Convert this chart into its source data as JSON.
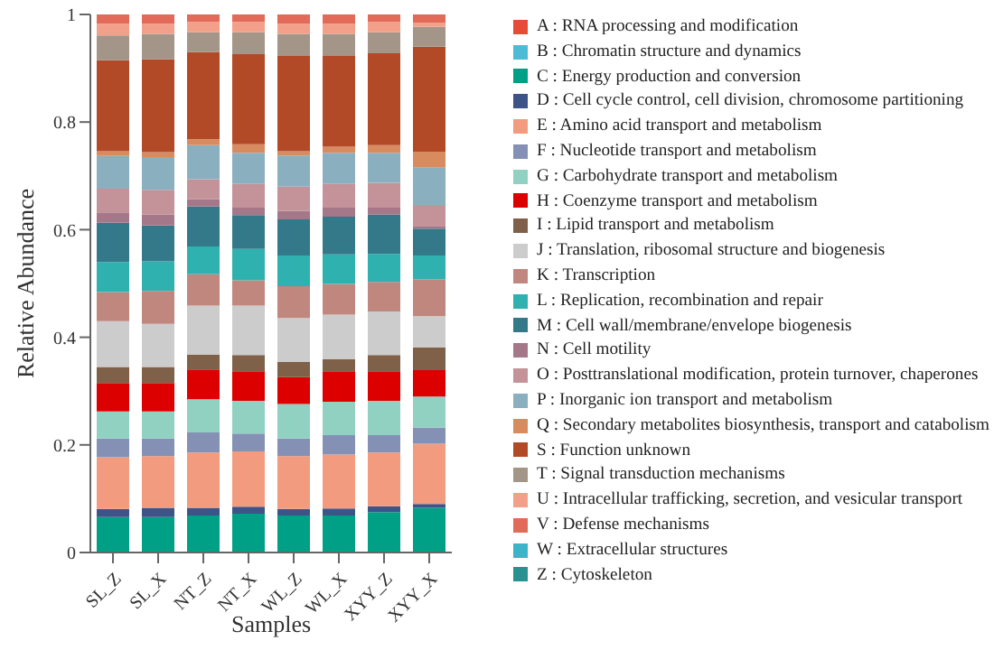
{
  "chart_data": {
    "type": "bar",
    "stacked": true,
    "xlabel": "Samples",
    "ylabel": "Relative Abundance",
    "categories": [
      "SL_Z",
      "SL_X",
      "NT_Z",
      "NT_X",
      "WL_Z",
      "WL_X",
      "XYY_Z",
      "XYY_X"
    ],
    "ylim": [
      0,
      1
    ],
    "yticks": [
      0,
      0.2,
      0.4,
      0.6,
      0.8,
      1
    ],
    "grid": false,
    "legend": "right",
    "series": [
      {
        "name": "A : RNA processing and modification",
        "color": "#e64b35",
        "values": [
          0,
          0,
          0,
          0,
          0,
          0,
          0,
          0
        ]
      },
      {
        "name": "B : Chromatin structure and dynamics",
        "color": "#4dbbd5",
        "values": [
          0,
          0,
          0,
          0,
          0,
          0,
          0,
          0
        ]
      },
      {
        "name": "C : Energy production and conversion",
        "color": "#00a087",
        "values": [
          0.066,
          0.066,
          0.069,
          0.072,
          0.069,
          0.069,
          0.075,
          0.083
        ]
      },
      {
        "name": "D : Cell cycle control, cell division, chromosome partitioning",
        "color": "#3c5488",
        "values": [
          0.015,
          0.017,
          0.014,
          0.013,
          0.012,
          0.013,
          0.011,
          0.007
        ]
      },
      {
        "name": "E : Amino acid transport and metabolism",
        "color": "#f39b7f",
        "values": [
          0.096,
          0.096,
          0.103,
          0.103,
          0.098,
          0.1,
          0.1,
          0.112
        ]
      },
      {
        "name": "F : Nucleotide transport and metabolism",
        "color": "#8491b4",
        "values": [
          0.035,
          0.033,
          0.037,
          0.033,
          0.033,
          0.036,
          0.032,
          0.03
        ]
      },
      {
        "name": "G : Carbohydrate transport and metabolism",
        "color": "#91d1c2",
        "values": [
          0.05,
          0.05,
          0.062,
          0.061,
          0.064,
          0.062,
          0.064,
          0.058
        ]
      },
      {
        "name": "H : Coenzyme transport and metabolism",
        "color": "#dc0000",
        "values": [
          0.053,
          0.053,
          0.055,
          0.055,
          0.05,
          0.057,
          0.055,
          0.049
        ]
      },
      {
        "name": "I : Lipid transport and metabolism",
        "color": "#7e6148",
        "values": [
          0.03,
          0.03,
          0.028,
          0.03,
          0.028,
          0.022,
          0.03,
          0.042
        ]
      },
      {
        "name": "J : Translation, ribosomal structure and biogenesis",
        "color": "#cccccc",
        "values": [
          0.085,
          0.08,
          0.091,
          0.092,
          0.082,
          0.083,
          0.081,
          0.058
        ]
      },
      {
        "name": "K : Transcription",
        "color": "#c0877e",
        "values": [
          0.054,
          0.061,
          0.058,
          0.047,
          0.059,
          0.057,
          0.055,
          0.069
        ]
      },
      {
        "name": "L : Replication, recombination and repair",
        "color": "#2fb1b0",
        "values": [
          0.056,
          0.055,
          0.052,
          0.058,
          0.057,
          0.055,
          0.052,
          0.044
        ]
      },
      {
        "name": "M : Cell wall/membrane/envelope biogenesis",
        "color": "#33798a",
        "values": [
          0.073,
          0.067,
          0.074,
          0.063,
          0.067,
          0.07,
          0.073,
          0.05
        ]
      },
      {
        "name": "N : Cell motility",
        "color": "#a47888",
        "values": [
          0.019,
          0.02,
          0.014,
          0.014,
          0.016,
          0.017,
          0.013,
          0.005
        ]
      },
      {
        "name": "O : Posttranslational modification, protein turnover, chaperones",
        "color": "#c4939a",
        "values": [
          0.044,
          0.046,
          0.037,
          0.044,
          0.045,
          0.044,
          0.046,
          0.039
        ]
      },
      {
        "name": "P : Inorganic ion transport and metabolism",
        "color": "#8ab0bf",
        "values": [
          0.061,
          0.061,
          0.063,
          0.058,
          0.058,
          0.058,
          0.056,
          0.069
        ]
      },
      {
        "name": "Q : Secondary metabolites biosynthesis, transport and catabolism",
        "color": "#d98b60",
        "values": [
          0.009,
          0.009,
          0.011,
          0.016,
          0.008,
          0.011,
          0.014,
          0.03
        ]
      },
      {
        "name": "S : Function unknown",
        "color": "#b24a28",
        "values": [
          0.169,
          0.173,
          0.162,
          0.167,
          0.177,
          0.169,
          0.171,
          0.195
        ]
      },
      {
        "name": "T : Signal transduction mechanisms",
        "color": "#a39588",
        "values": [
          0.046,
          0.047,
          0.037,
          0.041,
          0.041,
          0.041,
          0.039,
          0.037
        ]
      },
      {
        "name": "U : Intracellular trafficking, secretion, and vesicular transport",
        "color": "#f3a08a",
        "values": [
          0.022,
          0.019,
          0.019,
          0.019,
          0.019,
          0.019,
          0.019,
          0.008
        ]
      },
      {
        "name": "V : Defense mechanisms",
        "color": "#e16a58",
        "values": [
          0.017,
          0.017,
          0.014,
          0.014,
          0.017,
          0.017,
          0.014,
          0.015
        ]
      },
      {
        "name": "W : Extracellular structures",
        "color": "#3cb5c9",
        "values": [
          0,
          0,
          0,
          0,
          0,
          0,
          0,
          0
        ]
      },
      {
        "name": "Z : Cytoskeleton",
        "color": "#2a9191",
        "values": [
          0,
          0,
          0,
          0,
          0,
          0,
          0,
          0
        ]
      }
    ]
  }
}
